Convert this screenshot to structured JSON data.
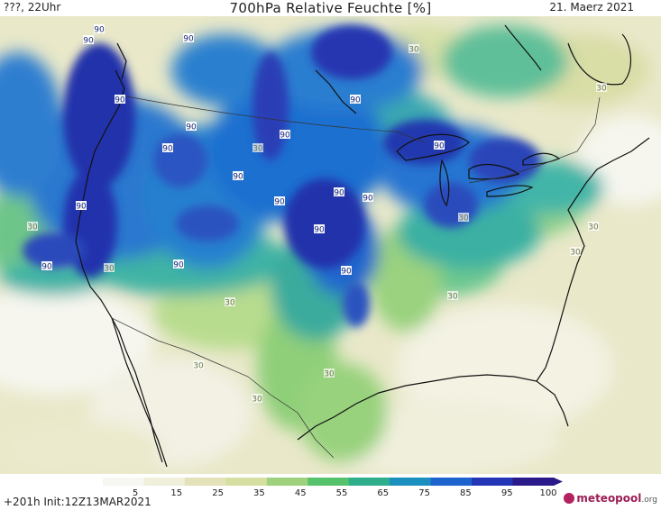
{
  "header": {
    "left": "???, 22Uhr",
    "title": "700hPa Relative Feuchte [%]",
    "date": "21. Maerz 2021"
  },
  "footer": {
    "run": "+201h  Init:12Z13MAR2021",
    "brand_main": "meteopool",
    "brand_tld": ".org"
  },
  "colorbar": {
    "ticks": [
      "5",
      "15",
      "25",
      "35",
      "45",
      "55",
      "65",
      "75",
      "85",
      "95",
      "100"
    ],
    "colors": [
      "#f7f7f2",
      "#efefdb",
      "#e3e2b8",
      "#d6dfa1",
      "#9fd07d",
      "#57c26c",
      "#2eae8b",
      "#1b8fbe",
      "#1c63cd",
      "#2337b6",
      "#2a1a8a"
    ]
  },
  "map_labels": [
    "90",
    "90",
    "90",
    "90",
    "90",
    "90",
    "90",
    "90",
    "90",
    "90",
    "90",
    "90",
    "90",
    "90",
    "90",
    "90",
    "90",
    "90",
    "30",
    "30",
    "30",
    "30",
    "30",
    "30",
    "30",
    "30",
    "30",
    "30",
    "30",
    "30",
    "30"
  ],
  "colors": {
    "very_dry": "#f4f4ec",
    "dry": "#e6e5c0",
    "mid": "#a9d57f",
    "moist": "#34b1a0",
    "wet": "#1f72cf",
    "saturated": "#2428a8"
  }
}
